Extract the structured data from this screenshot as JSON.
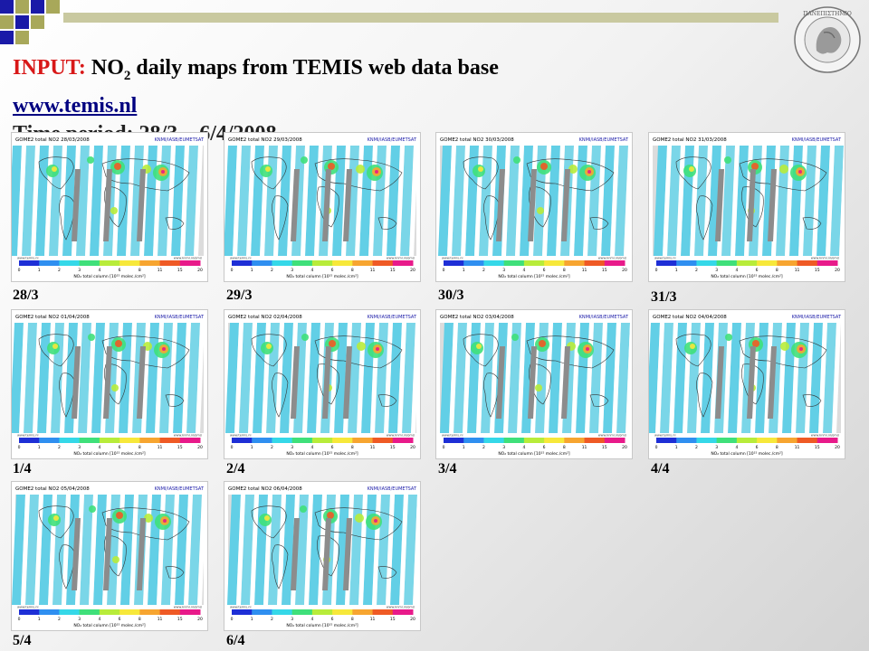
{
  "title": {
    "label": "INPUT:",
    "main": "NO",
    "subscript": "2",
    "rest": "daily maps from TEMIS web data base"
  },
  "link": "www.temis.nl",
  "obscured_line": "Time period: 28/3 – 6/4/2008",
  "map_common": {
    "product": "GOME2 total NO",
    "product_subscript": "2",
    "credit": "KNMI/IASB/EUMETSAT",
    "colorbar_title": "NO₂ total column [10¹⁵ molec./cm²]",
    "colorbar_ticks": [
      "0",
      "1",
      "2",
      "3",
      "4",
      "6",
      "8",
      "11",
      "15",
      "20"
    ],
    "footer_left": "www.temis.nl",
    "footer_right": "www.knmi.nl/omi/",
    "colorbar_colors": [
      "#1e2fd6",
      "#2f8ff0",
      "#35d8e8",
      "#3fe07a",
      "#b8ec3a",
      "#f7e83a",
      "#f7a530",
      "#ef5a25",
      "#e81a8a"
    ]
  },
  "maps": [
    {
      "date": "28/03/2008",
      "caption": "28/3"
    },
    {
      "date": "29/03/2008",
      "caption": "29/3"
    },
    {
      "date": "30/03/2008",
      "caption": "30/3"
    },
    {
      "date": "31/03/2008",
      "caption": "31/3"
    },
    {
      "date": "01/04/2008",
      "caption": "1/4"
    },
    {
      "date": "02/04/2008",
      "caption": "2/4"
    },
    {
      "date": "03/04/2008",
      "caption": "3/4"
    },
    {
      "date": "04/04/2008",
      "caption": "4/4"
    },
    {
      "date": "05/04/2008",
      "caption": "5/4"
    },
    {
      "date": "06/04/2008",
      "caption": "6/4"
    }
  ],
  "colors": {
    "accent_red": "#d81818",
    "link_blue": "#000080",
    "corner_blue": "#1a1aa8",
    "corner_olive": "#a8a85a"
  }
}
